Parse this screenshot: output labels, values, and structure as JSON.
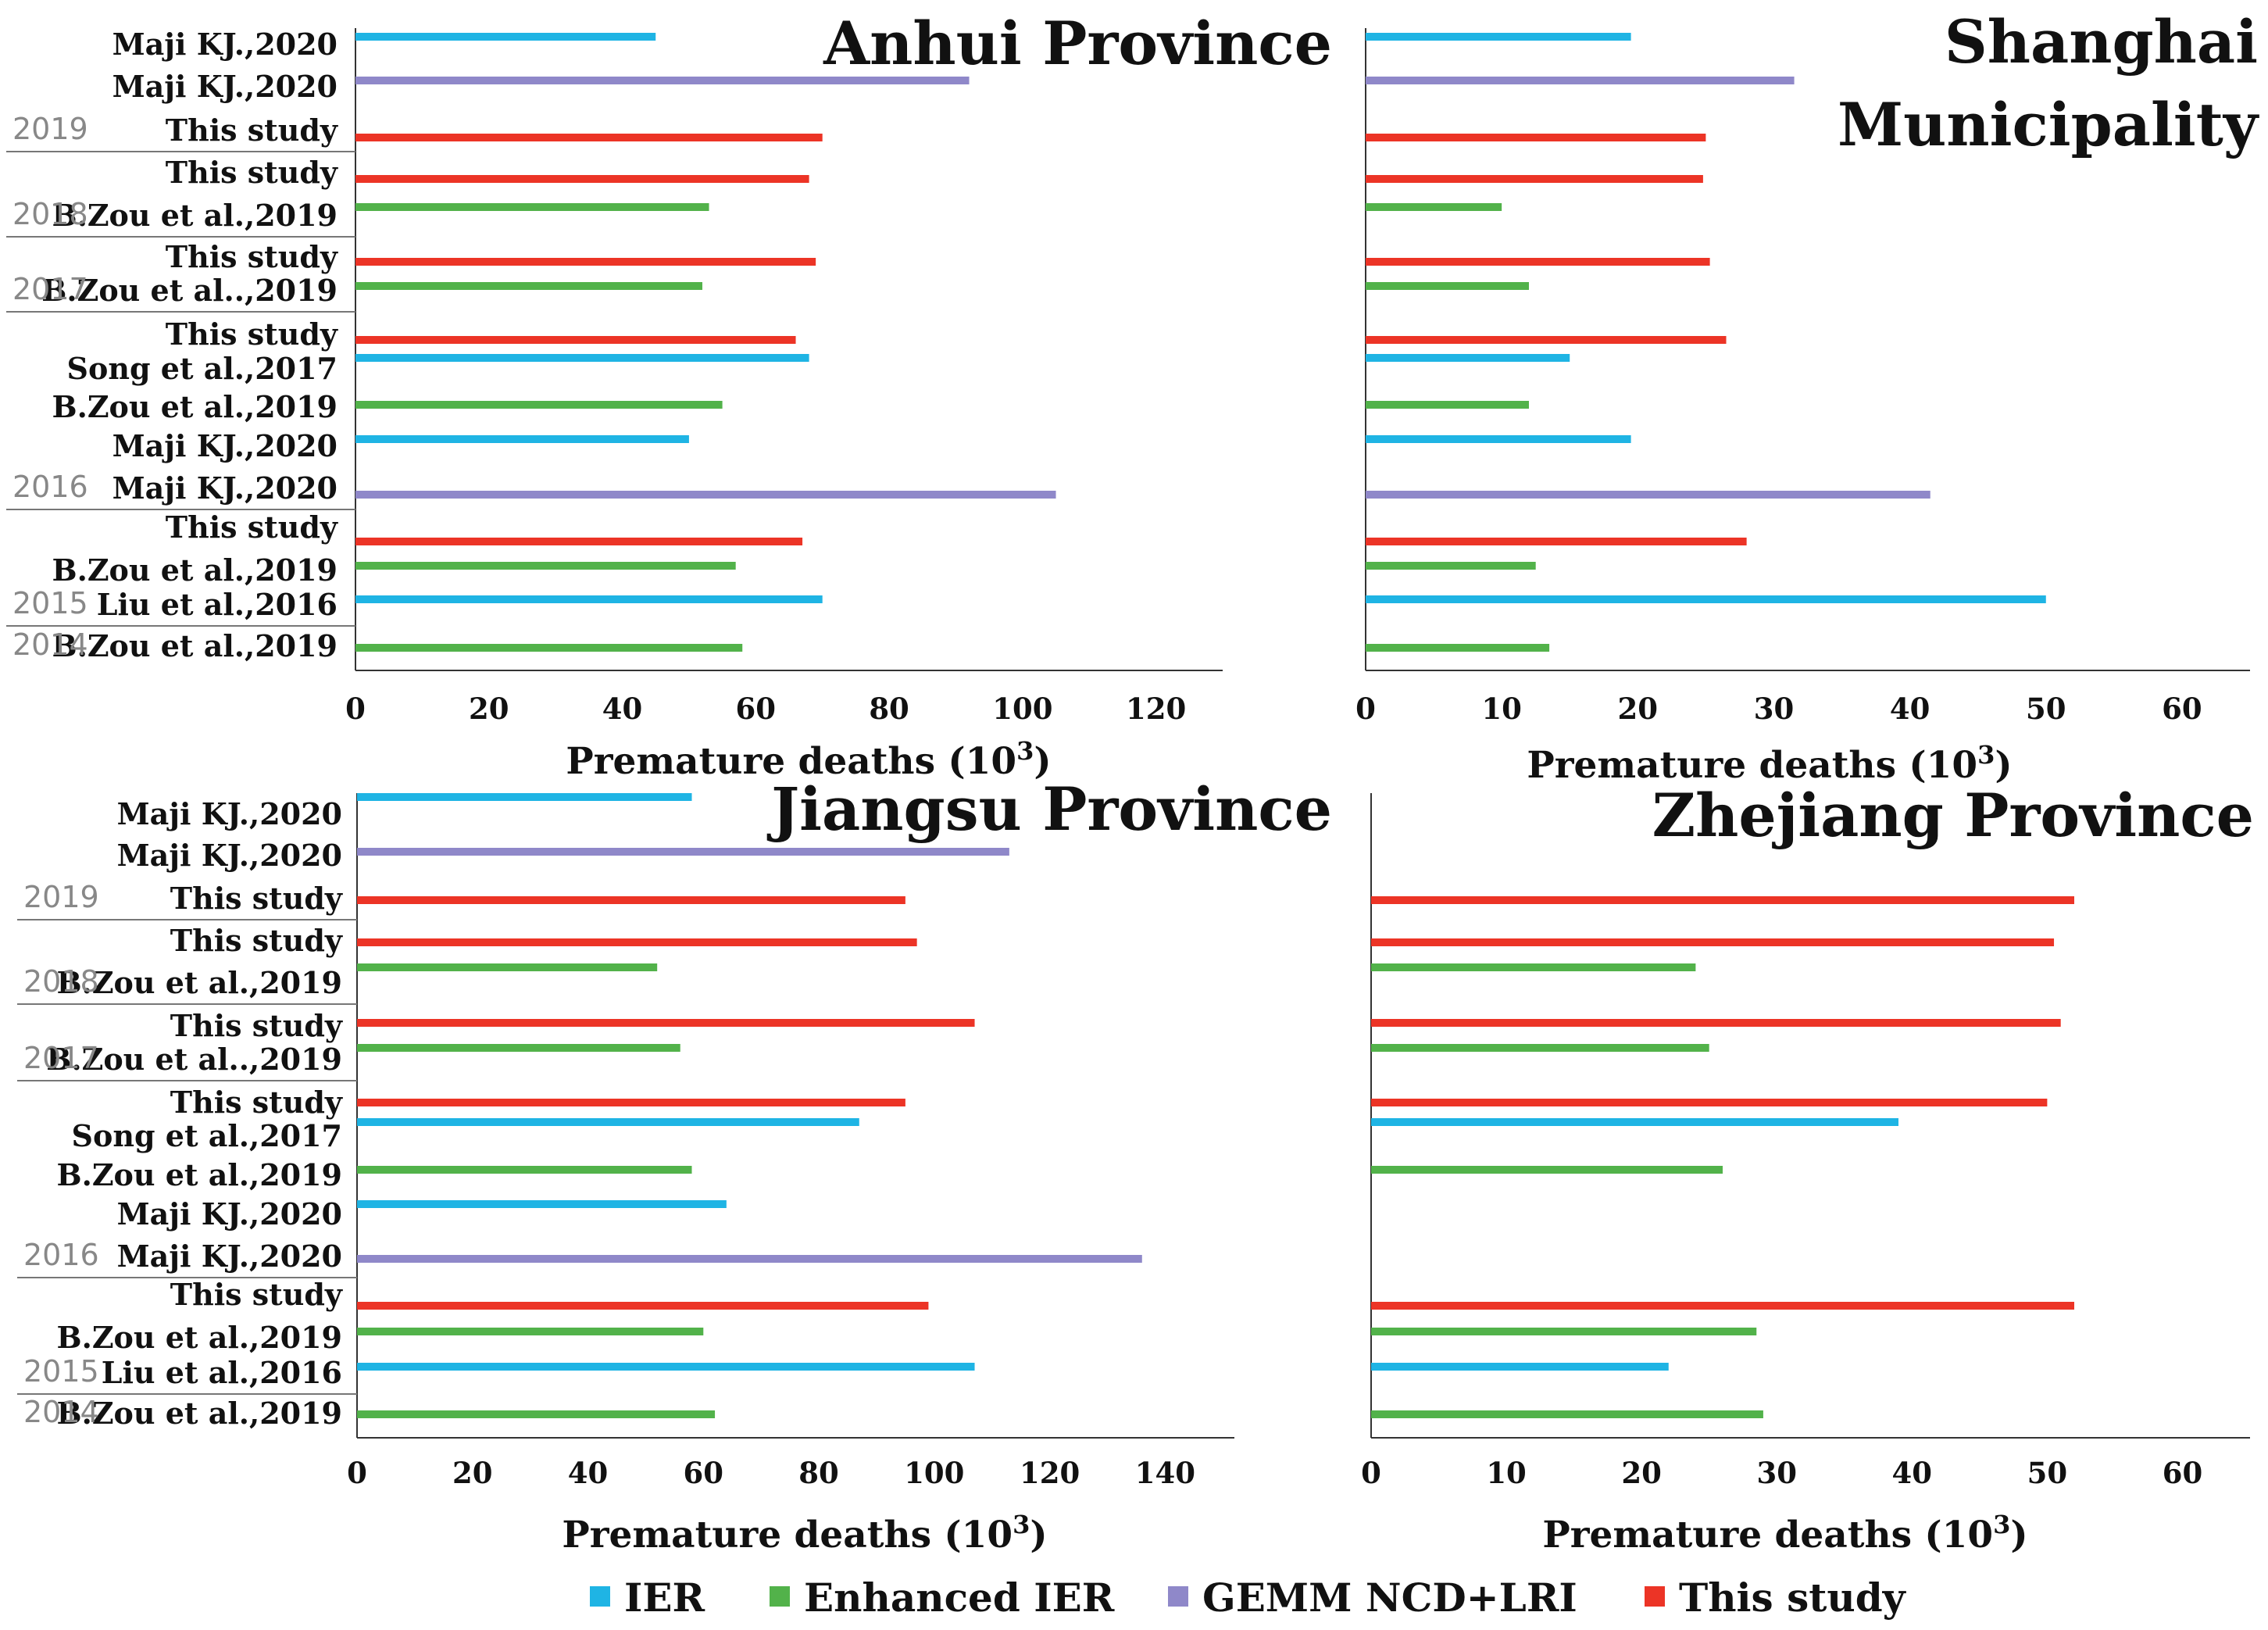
{
  "chart_data": [
    {
      "type": "bar",
      "title_lines": [
        "Anhui Province"
      ],
      "xlabel": "Premature deaths (10",
      "xlabel_sup": "3",
      "xlabel_end": ")",
      "xlim": [
        0,
        130
      ],
      "ticks": [
        "0",
        "20",
        "40",
        "60",
        "80",
        "100",
        "120"
      ],
      "rows": [
        {
          "label": "Maji KJ.,2020",
          "method": "IER",
          "value": 45
        },
        {
          "label": "Maji KJ.,2020",
          "method": "GEMM NCD+LRI",
          "value": 92
        },
        {
          "label": "This study",
          "method": "This study",
          "value": 70
        },
        {
          "label": "This study",
          "method": "This study",
          "value": 68
        },
        {
          "label": "B.Zou et al.,2019",
          "method": "Enhanced IER",
          "value": 53
        },
        {
          "label": "This study",
          "method": "This study",
          "value": 69
        },
        {
          "label": "B.Zou et al..,2019",
          "method": "Enhanced IER",
          "value": 52
        },
        {
          "label": "This study",
          "method": "This study",
          "value": 66
        },
        {
          "label": "Song et al.,2017",
          "method": "IER",
          "value": 68
        },
        {
          "label": "B.Zou et al.,2019",
          "method": "Enhanced IER",
          "value": 55
        },
        {
          "label": "Maji KJ.,2020",
          "method": "IER",
          "value": 50
        },
        {
          "label": "Maji KJ.,2020",
          "method": "GEMM NCD+LRI",
          "value": 105
        },
        {
          "label": "This study",
          "method": "This study",
          "value": 67
        },
        {
          "label": "B.Zou et al.,2019",
          "method": "Enhanced IER",
          "value": 57
        },
        {
          "label": "Liu et al.,2016",
          "method": "IER",
          "value": 70
        },
        {
          "label": "B.Zou et al.,2019",
          "method": "Enhanced IER",
          "value": 58
        }
      ]
    },
    {
      "type": "bar",
      "title_lines": [
        "Shanghai",
        "Municipality"
      ],
      "xlabel": "Premature deaths (10",
      "xlabel_sup": "3",
      "xlabel_end": ")",
      "xlim": [
        0,
        65
      ],
      "ticks": [
        "0",
        "10",
        "20",
        "30",
        "40",
        "50",
        "60"
      ],
      "rows": [
        {
          "label": "Maji KJ.,2020",
          "method": "IER",
          "value": 19.5
        },
        {
          "label": "Maji KJ.,2020",
          "method": "GEMM NCD+LRI",
          "value": 31.5
        },
        {
          "label": "This study",
          "method": "This study",
          "value": 25
        },
        {
          "label": "This study",
          "method": "This study",
          "value": 24.8
        },
        {
          "label": "B.Zou et al.,2019",
          "method": "Enhanced IER",
          "value": 10
        },
        {
          "label": "This study",
          "method": "This study",
          "value": 25.3
        },
        {
          "label": "B.Zou et al..,2019",
          "method": "Enhanced IER",
          "value": 12
        },
        {
          "label": "This study",
          "method": "This study",
          "value": 26.5
        },
        {
          "label": "Song et al.,2017",
          "method": "IER",
          "value": 15
        },
        {
          "label": "B.Zou et al.,2019",
          "method": "Enhanced IER",
          "value": 12
        },
        {
          "label": "Maji KJ.,2020",
          "method": "IER",
          "value": 19.5
        },
        {
          "label": "Maji KJ.,2020",
          "method": "GEMM NCD+LRI",
          "value": 41.5
        },
        {
          "label": "This study",
          "method": "This study",
          "value": 28
        },
        {
          "label": "B.Zou et al.,2019",
          "method": "Enhanced IER",
          "value": 12.5
        },
        {
          "label": "Liu et al.,2016",
          "method": "IER",
          "value": 50
        },
        {
          "label": "B.Zou et al.,2019",
          "method": "Enhanced IER",
          "value": 13.5
        }
      ]
    },
    {
      "type": "bar",
      "title_lines": [
        "Jiangsu Province"
      ],
      "xlabel": "Premature deaths (10",
      "xlabel_sup": "3",
      "xlabel_end": ")",
      "xlim": [
        0,
        152
      ],
      "ticks": [
        "0",
        "20",
        "40",
        "60",
        "80",
        "100",
        "120",
        "140"
      ],
      "rows": [
        {
          "label": "Maji KJ.,2020",
          "method": "IER",
          "value": 58
        },
        {
          "label": "Maji KJ.,2020",
          "method": "GEMM NCD+LRI",
          "value": 113
        },
        {
          "label": "This study",
          "method": "This study",
          "value": 95
        },
        {
          "label": "This study",
          "method": "This study",
          "value": 97
        },
        {
          "label": "B.Zou et al.,2019",
          "method": "Enhanced IER",
          "value": 52
        },
        {
          "label": "This study",
          "method": "This study",
          "value": 107
        },
        {
          "label": "B.Zou et al..,2019",
          "method": "Enhanced IER",
          "value": 56
        },
        {
          "label": "This study",
          "method": "This study",
          "value": 95
        },
        {
          "label": "Song et al.,2017",
          "method": "IER",
          "value": 87
        },
        {
          "label": "B.Zou et al.,2019",
          "method": "Enhanced IER",
          "value": 58
        },
        {
          "label": "Maji KJ.,2020",
          "method": "IER",
          "value": 64
        },
        {
          "label": "Maji KJ.,2020",
          "method": "GEMM NCD+LRI",
          "value": 136
        },
        {
          "label": "This study",
          "method": "This study",
          "value": 99
        },
        {
          "label": "B.Zou et al.,2019",
          "method": "Enhanced IER",
          "value": 60
        },
        {
          "label": "Liu et al.,2016",
          "method": "IER",
          "value": 107
        },
        {
          "label": "B.Zou et al.,2019",
          "method": "Enhanced IER",
          "value": 62
        }
      ]
    },
    {
      "type": "bar",
      "title_lines": [
        "Zhejiang Province"
      ],
      "xlabel": "Premature deaths (10",
      "xlabel_sup": "3",
      "xlabel_end": ")",
      "xlim": [
        0,
        65
      ],
      "ticks": [
        "0",
        "10",
        "20",
        "30",
        "40",
        "50",
        "60"
      ],
      "rows": [
        {
          "label": "",
          "method": "",
          "value": null
        },
        {
          "label": "",
          "method": "",
          "value": null
        },
        {
          "label": "",
          "method": "This study",
          "value": 52
        },
        {
          "label": "",
          "method": "This study",
          "value": 50.5
        },
        {
          "label": "",
          "method": "Enhanced IER",
          "value": 24
        },
        {
          "label": "",
          "method": "This study",
          "value": 51
        },
        {
          "label": "",
          "method": "Enhanced IER",
          "value": 25
        },
        {
          "label": "",
          "method": "This study",
          "value": 50
        },
        {
          "label": "",
          "method": "IER",
          "value": 39
        },
        {
          "label": "",
          "method": "Enhanced IER",
          "value": 26
        },
        {
          "label": "",
          "method": "",
          "value": null
        },
        {
          "label": "",
          "method": "",
          "value": null
        },
        {
          "label": "",
          "method": "This study",
          "value": 52
        },
        {
          "label": "",
          "method": "Enhanced IER",
          "value": 28.5
        },
        {
          "label": "",
          "method": "IER",
          "value": 22
        },
        {
          "label": "",
          "method": "Enhanced IER",
          "value": 29
        }
      ]
    }
  ],
  "year_groups": [
    {
      "year": "2019",
      "rows": [
        2
      ]
    },
    {
      "year": "2018",
      "rows": [
        3,
        4
      ]
    },
    {
      "year": "2017",
      "rows": [
        5,
        6
      ]
    },
    {
      "year": "2016",
      "rows": [
        7,
        8,
        9,
        10,
        11
      ]
    },
    {
      "year": "2015",
      "rows": [
        12,
        13,
        14
      ]
    },
    {
      "year": "2014",
      "rows": [
        15
      ]
    }
  ],
  "legend": [
    {
      "label": "IER",
      "color": "#1fb4e4"
    },
    {
      "label": "Enhanced IER",
      "color": "#52b24a"
    },
    {
      "label": "GEMM NCD+LRI",
      "color": "#8f88c9"
    },
    {
      "label": "This study",
      "color": "#ec3426"
    }
  ]
}
